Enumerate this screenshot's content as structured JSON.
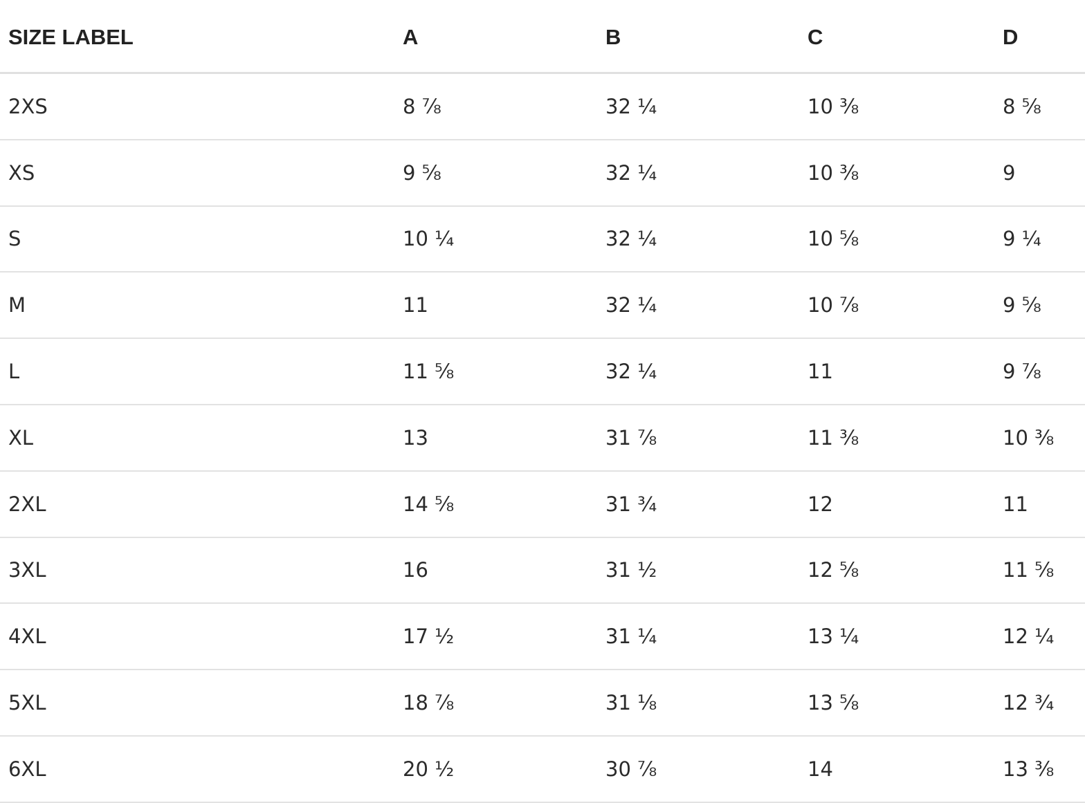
{
  "table": {
    "header": [
      "SIZE LABEL",
      "A",
      "B",
      "C",
      "D"
    ],
    "rows": [
      [
        "2XS",
        "8 ⅞",
        "32 ¼",
        "10 ⅜",
        "8 ⅝"
      ],
      [
        "XS",
        "9 ⅝",
        "32 ¼",
        "10 ⅜",
        "9"
      ],
      [
        "S",
        "10 ¼",
        "32 ¼",
        "10 ⅝",
        "9 ¼"
      ],
      [
        "M",
        "11",
        "32 ¼",
        "10 ⅞",
        "9 ⅝"
      ],
      [
        "L",
        "11 ⅝",
        "32 ¼",
        "11",
        "9 ⅞"
      ],
      [
        "XL",
        "13",
        "31 ⅞",
        "11 ⅜",
        "10 ⅜"
      ],
      [
        "2XL",
        "14 ⅝",
        "31 ¾",
        "12",
        "11"
      ],
      [
        "3XL",
        "16",
        "31 ½",
        "12 ⅝",
        "11 ⅝"
      ],
      [
        "4XL",
        "17 ½",
        "31 ¼",
        "13 ¼",
        "12 ¼"
      ],
      [
        "5XL",
        "18 ⅞",
        "31 ⅛",
        "13 ⅝",
        "12 ¾"
      ],
      [
        "6XL",
        "20 ½",
        "30 ⅞",
        "14",
        "13 ⅜"
      ]
    ]
  }
}
